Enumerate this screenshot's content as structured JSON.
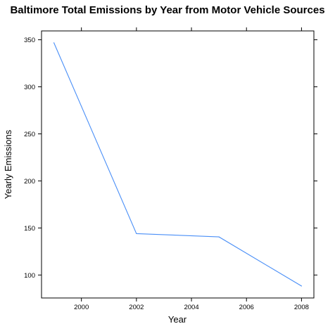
{
  "chart_data": {
    "type": "line",
    "title": "Baltimore Total Emissions by Year from Motor Vehicle Sources",
    "xlabel": "Year",
    "ylabel": "Yearly Emissions",
    "x": [
      1999,
      2002,
      2005,
      2008
    ],
    "series": [
      {
        "values": [
          346.8,
          144.0,
          140.5,
          88.3
        ],
        "color": "#4a8ff7"
      }
    ],
    "xticks": [
      "2000",
      "2002",
      "2004",
      "2006",
      "2008"
    ],
    "yticks": [
      "100",
      "150",
      "200",
      "250",
      "300",
      "350"
    ],
    "xlim": [
      1998.55,
      2008.45
    ],
    "ylim": [
      75.6,
      359.4
    ],
    "grid": false,
    "legend": "none"
  }
}
